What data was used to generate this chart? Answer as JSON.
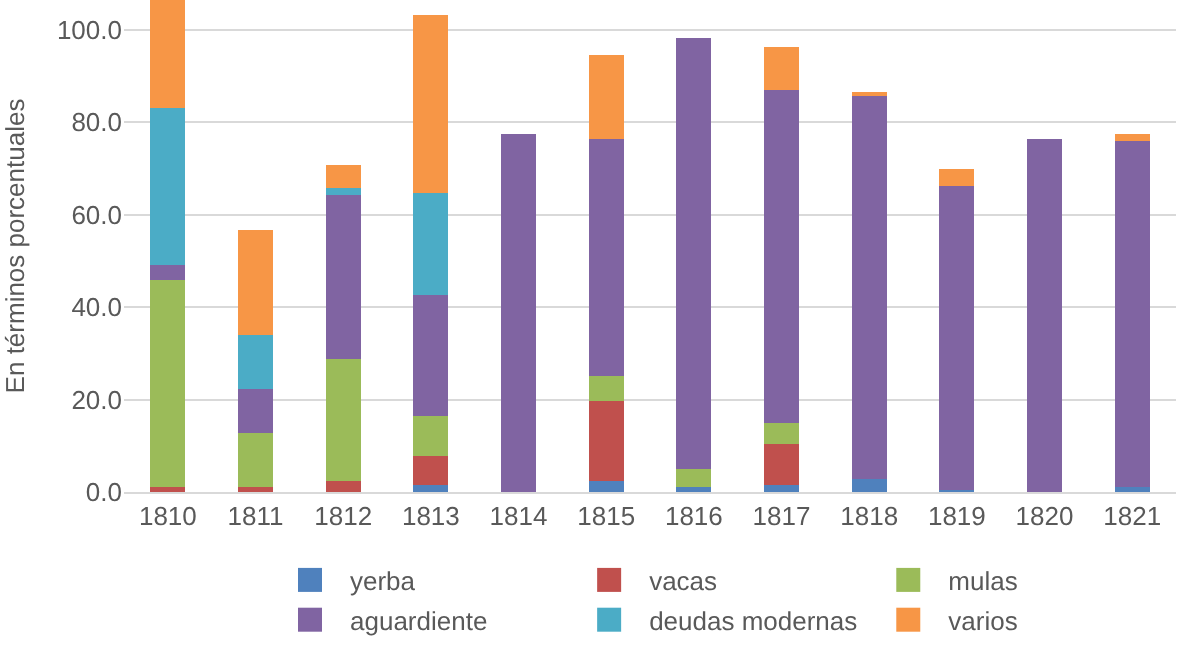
{
  "chart_data": {
    "type": "bar",
    "stacked": true,
    "ylabel": "En términos porcentuales",
    "categories": [
      "1810",
      "1811",
      "1812",
      "1813",
      "1814",
      "1815",
      "1816",
      "1817",
      "1818",
      "1819",
      "1820",
      "1821"
    ],
    "series": [
      {
        "name": "yerba",
        "color": "#4f81bd",
        "values": [
          0,
          0,
          0,
          1.6,
          0,
          2.4,
          1.0,
          1.6,
          2.8,
          0.4,
          0,
          1.1
        ]
      },
      {
        "name": "vacas",
        "color": "#c0504d",
        "values": [
          1.0,
          1.0,
          2.3,
          6.2,
          0,
          17.2,
          0,
          8.7,
          0,
          0,
          0,
          0
        ]
      },
      {
        "name": "mulas",
        "color": "#9bbb59",
        "values": [
          44.8,
          11.7,
          26.4,
          8.7,
          0,
          5.4,
          3.9,
          4.7,
          0,
          0,
          0,
          0
        ]
      },
      {
        "name": "aguardiente",
        "color": "#8064a2",
        "values": [
          3.4,
          9.5,
          35.6,
          26.0,
          77.4,
          51.3,
          93.3,
          72.0,
          82.9,
          65.8,
          76.3,
          74.9
        ]
      },
      {
        "name": "deudas modernas",
        "color": "#4bacc6",
        "values": [
          33.9,
          11.7,
          1.5,
          22.2,
          0,
          0,
          0,
          0,
          0,
          0,
          0,
          0
        ]
      },
      {
        "name": "varios",
        "color": "#f79646",
        "values": [
          23.3,
          22.7,
          5.0,
          38.5,
          0,
          18.1,
          0,
          9.2,
          0.6,
          3.7,
          0,
          1.4
        ]
      }
    ],
    "ylim": [
      0,
      106.4
    ],
    "yticks": [
      {
        "value": 0,
        "label": "0.0"
      },
      {
        "value": 20,
        "label": "20.0"
      },
      {
        "value": 40,
        "label": "40.0"
      },
      {
        "value": 60,
        "label": "60.0"
      },
      {
        "value": 80,
        "label": "80.0"
      },
      {
        "value": 100,
        "label": "100.0"
      }
    ],
    "grid": "y",
    "legend": "bottom"
  }
}
